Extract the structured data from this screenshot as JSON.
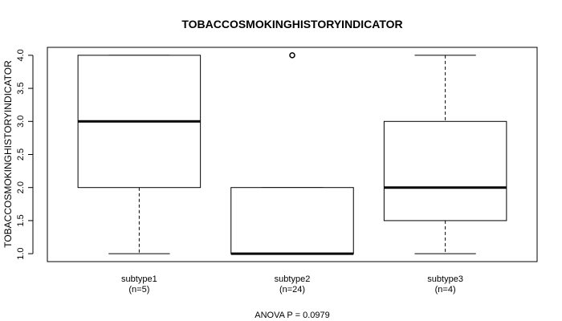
{
  "chart_data": {
    "type": "boxplot",
    "title": "TOBACCOSMOKINGHISTORYINDICATOR",
    "ylabel": "TOBACCOSMOKINGHISTORYINDICATOR",
    "xlabel": "",
    "ylim": [
      0.88,
      4.12
    ],
    "yticks": [
      1.0,
      1.5,
      2.0,
      2.5,
      3.0,
      3.5,
      4.0
    ],
    "ytick_labels": [
      "1.0",
      "1.5",
      "2.0",
      "2.5",
      "3.0",
      "3.5",
      "4.0"
    ],
    "grid": false,
    "groups": [
      {
        "label": "subtype1",
        "n_label": "(n=5)",
        "whisker_low": 1.0,
        "q1": 2.0,
        "median": 3.0,
        "q3": 4.0,
        "whisker_high": 4.0,
        "outliers": []
      },
      {
        "label": "subtype2",
        "n_label": "(n=24)",
        "whisker_low": 1.0,
        "q1": 1.0,
        "median": 1.0,
        "q3": 2.0,
        "whisker_high": 2.0,
        "outliers": [
          4.0
        ]
      },
      {
        "label": "subtype3",
        "n_label": "(n=4)",
        "whisker_low": 1.0,
        "q1": 1.5,
        "median": 2.0,
        "q3": 3.0,
        "whisker_high": 4.0,
        "outliers": []
      }
    ],
    "footer": "ANOVA P = 0.0979"
  }
}
